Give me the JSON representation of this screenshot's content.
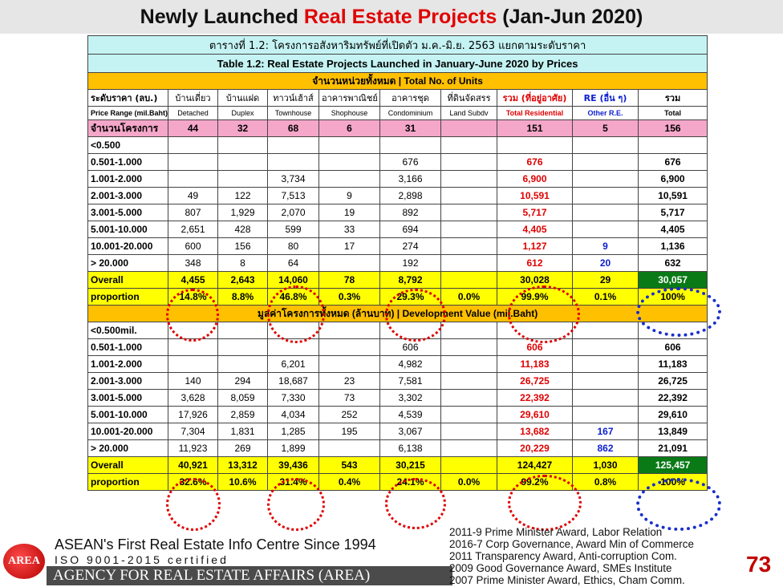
{
  "title": {
    "part1": "Newly Launched ",
    "part2": "Real Estate Projects",
    "part3": " (Jan-Jun 2020)"
  },
  "table": {
    "caption_th": "ตารางที่ 1.2: โครงการอสังหาริมทรัพย์ที่เปิดตัว ม.ค.-มิ.ย. 2563 แยกตามระดับราคา",
    "caption_en": "Table 1.2: Real Estate Projects Launched in January-June 2020 by Prices",
    "section1": "จำนวนหน่วยทั้งหมด | Total No. of Units",
    "section2": "มูลค่าโครงการทั้งหมด (ล้านบาท) | Development Value (mil.Baht)",
    "headers_th": [
      "ระดับราคา (ลบ.)",
      "บ้านเดี่ยว",
      "บ้านแฝด",
      "ทาวน์เฮ้าส์",
      "อาคารพาณิชย์",
      "อาคารชุด",
      "ที่ดินจัดสรร",
      "รวม (ที่อยู่อาศัย)",
      "RE (อื่น ๆ)",
      "รวม"
    ],
    "headers_en": [
      "Price Range (mil.Baht)",
      "Detached",
      "Duplex",
      "Townhouse",
      "Shophouse",
      "Condominium",
      "Land Subdv",
      "Total Residential",
      "Other R.E.",
      "Total"
    ],
    "projects": [
      "จำนวนโครงการ",
      "44",
      "32",
      "68",
      "6",
      "31",
      "",
      "151",
      "5",
      "156"
    ],
    "units_rows": [
      [
        "<0.500",
        "",
        "",
        "",
        "",
        "",
        "",
        "",
        "",
        ""
      ],
      [
        "0.501-1.000",
        "",
        "",
        "",
        "",
        "676",
        "",
        "676",
        "",
        "676"
      ],
      [
        "1.001-2.000",
        "",
        "",
        "3,734",
        "",
        "3,166",
        "",
        "6,900",
        "",
        "6,900"
      ],
      [
        "2.001-3.000",
        "49",
        "122",
        "7,513",
        "9",
        "2,898",
        "",
        "10,591",
        "",
        "10,591"
      ],
      [
        "3.001-5.000",
        "807",
        "1,929",
        "2,070",
        "19",
        "892",
        "",
        "5,717",
        "",
        "5,717"
      ],
      [
        "5.001-10.000",
        "2,651",
        "428",
        "599",
        "33",
        "694",
        "",
        "4,405",
        "",
        "4,405"
      ],
      [
        "10.001-20.000",
        "600",
        "156",
        "80",
        "17",
        "274",
        "",
        "1,127",
        "9",
        "1,136"
      ],
      [
        "> 20.000",
        "348",
        "8",
        "64",
        "",
        "192",
        "",
        "612",
        "20",
        "632"
      ]
    ],
    "units_overall": [
      "Overall",
      "4,455",
      "2,643",
      "14,060",
      "78",
      "8,792",
      "",
      "30,028",
      "29",
      "30,057"
    ],
    "units_proportion": [
      "proportion",
      "14.8%",
      "8.8%",
      "46.8%",
      "0.3%",
      "29.3%",
      "0.0%",
      "99.9%",
      "0.1%",
      "100%"
    ],
    "value_rows": [
      [
        "<0.500mil.",
        "",
        "",
        "",
        "",
        "",
        "",
        "",
        "",
        ""
      ],
      [
        "0.501-1.000",
        "",
        "",
        "",
        "",
        "606",
        "",
        "606",
        "",
        "606"
      ],
      [
        "1.001-2.000",
        "",
        "",
        "6,201",
        "",
        "4,982",
        "",
        "11,183",
        "",
        "11,183"
      ],
      [
        "2.001-3.000",
        "140",
        "294",
        "18,687",
        "23",
        "7,581",
        "",
        "26,725",
        "",
        "26,725"
      ],
      [
        "3.001-5.000",
        "3,628",
        "8,059",
        "7,330",
        "73",
        "3,302",
        "",
        "22,392",
        "",
        "22,392"
      ],
      [
        "5.001-10.000",
        "17,926",
        "2,859",
        "4,034",
        "252",
        "4,539",
        "",
        "29,610",
        "",
        "29,610"
      ],
      [
        "10.001-20.000",
        "7,304",
        "1,831",
        "1,285",
        "195",
        "3,067",
        "",
        "13,682",
        "167",
        "13,849"
      ],
      [
        "> 20.000",
        "11,923",
        "269",
        "1,899",
        "",
        "6,138",
        "",
        "20,229",
        "862",
        "21,091"
      ]
    ],
    "value_overall": [
      "Overall",
      "40,921",
      "13,312",
      "39,436",
      "543",
      "30,215",
      "",
      "124,427",
      "1,030",
      "125,457"
    ],
    "value_proportion": [
      "proportion",
      "32.6%",
      "10.6%",
      "31.4%",
      "0.4%",
      "24.1%",
      "0.0%",
      "99.2%",
      "0.8%",
      "100%"
    ]
  },
  "footer": {
    "line1": "ASEAN's First Real Estate Info Centre Since 1994",
    "line2": "ISO 9001-2015 certified",
    "line3": "AGENCY FOR REAL ESTATE AFFAIRS (AREA)",
    "logo": "AREA",
    "awards": [
      "2011-9 Prime Minister Award, Labor Relation",
      "2016-7 Corp Governance, Award Min of Commerce",
      "2011 Transparency Award, Anti-corruption Com.",
      "2009 Good Governance Award, SMEs Institute",
      "2007 Prime Minister Award, Ethics, Cham Comm."
    ],
    "page_number": "73"
  },
  "colors": {
    "caption_bg": "#c5f3f3",
    "section_bg": "#ffc000",
    "project_row_bg": "#f4a7c9",
    "summary_bg": "#ffff00",
    "total_highlight": "#0a7a16",
    "accent_red": "#e00000",
    "accent_blue": "#0b1ecf"
  }
}
